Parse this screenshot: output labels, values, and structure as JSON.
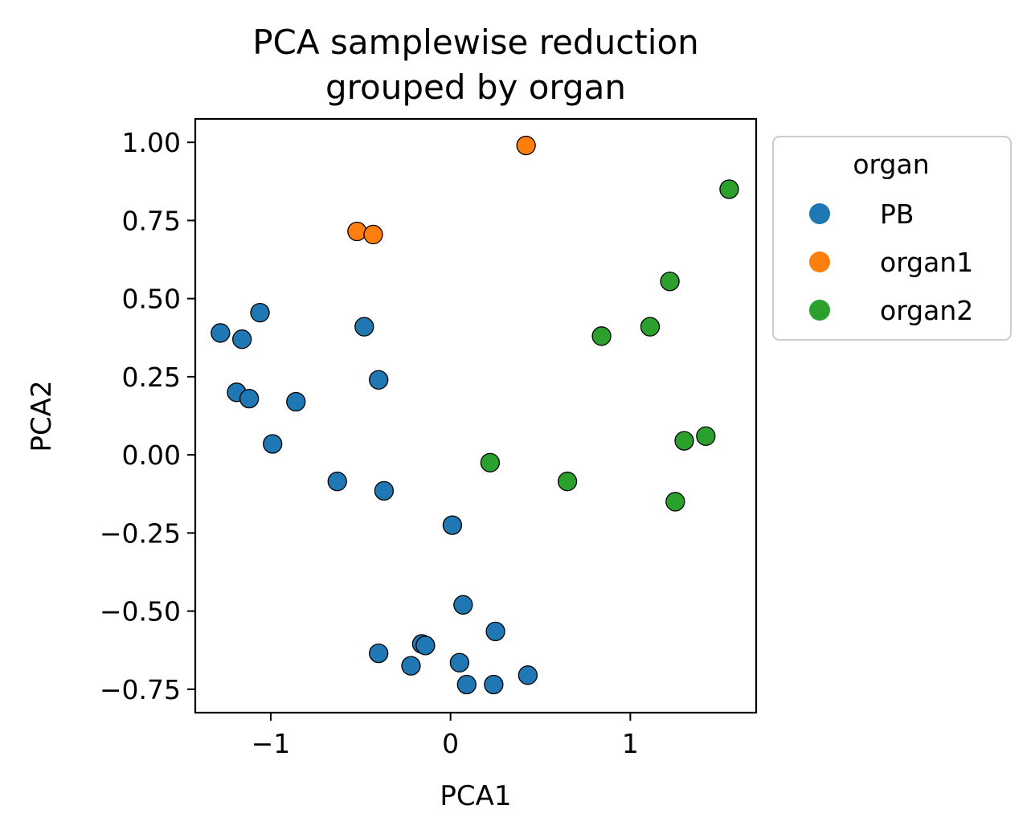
{
  "chart_data": {
    "type": "scatter",
    "title": "PCA samplewise reduction",
    "subtitle": "grouped by organ",
    "xlabel": "PCA1",
    "ylabel": "PCA2",
    "xlim": [
      -1.42,
      1.7
    ],
    "ylim": [
      -0.825,
      1.075
    ],
    "x_ticks": [
      -1,
      0,
      1
    ],
    "x_tick_labels": [
      "−1",
      "0",
      "1"
    ],
    "y_ticks": [
      1.0,
      0.75,
      0.5,
      0.25,
      0.0,
      -0.25,
      -0.5,
      -0.75
    ],
    "y_tick_labels": [
      "1.00",
      "0.75",
      "0.50",
      "0.25",
      "0.00",
      "−0.25",
      "−0.50",
      "−0.75"
    ],
    "grid": false,
    "legend": {
      "title": "organ",
      "placement": "outside upper right"
    },
    "series": [
      {
        "name": "PB",
        "color": "#1f77b4",
        "points": [
          [
            -1.28,
            0.39
          ],
          [
            -1.16,
            0.37
          ],
          [
            -1.06,
            0.455
          ],
          [
            -0.48,
            0.41
          ],
          [
            -0.4,
            0.24
          ],
          [
            -1.19,
            0.2
          ],
          [
            -1.12,
            0.18
          ],
          [
            -0.86,
            0.17
          ],
          [
            -0.99,
            0.035
          ],
          [
            -0.63,
            -0.085
          ],
          [
            -0.37,
            -0.115
          ],
          [
            0.01,
            -0.225
          ],
          [
            0.07,
            -0.48
          ],
          [
            0.25,
            -0.565
          ],
          [
            -0.16,
            -0.605
          ],
          [
            -0.14,
            -0.61
          ],
          [
            -0.4,
            -0.635
          ],
          [
            -0.22,
            -0.675
          ],
          [
            0.05,
            -0.665
          ],
          [
            0.09,
            -0.735
          ],
          [
            0.24,
            -0.735
          ],
          [
            0.43,
            -0.705
          ]
        ]
      },
      {
        "name": "organ1",
        "color": "#ff7f0e",
        "points": [
          [
            0.42,
            0.99
          ],
          [
            -0.52,
            0.715
          ],
          [
            -0.43,
            0.705
          ]
        ]
      },
      {
        "name": "organ2",
        "color": "#2ca02c",
        "points": [
          [
            1.55,
            0.85
          ],
          [
            1.22,
            0.555
          ],
          [
            1.11,
            0.41
          ],
          [
            0.84,
            0.38
          ],
          [
            1.3,
            0.045
          ],
          [
            1.42,
            0.06
          ],
          [
            0.22,
            -0.025
          ],
          [
            0.65,
            -0.085
          ],
          [
            1.25,
            -0.15
          ]
        ]
      }
    ]
  }
}
